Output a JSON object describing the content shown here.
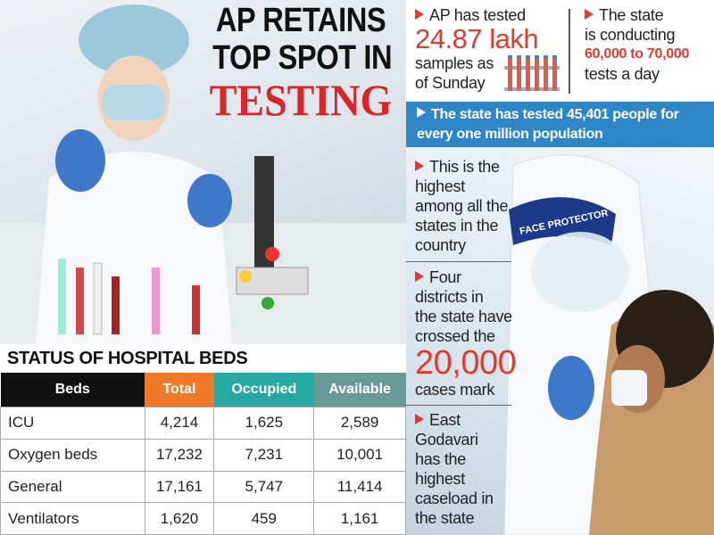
{
  "headline": {
    "lines": [
      "AP RETAINS",
      "TOP SPOT IN",
      "TESTING"
    ]
  },
  "facts": {
    "tested": {
      "lines": [
        "AP has tested",
        "24.87 lakh",
        "samples as",
        "of Sunday"
      ]
    },
    "daily": {
      "lines": [
        "The state",
        "is conducting",
        "60,000 to 70,000",
        "tests a day"
      ]
    },
    "banner": {
      "lines": [
        "The state has tested 45,401 people for",
        "every one million population"
      ]
    }
  },
  "bullets": [
    {
      "lines": [
        "This is the",
        "highest",
        "among all the",
        "states in the",
        "country"
      ]
    },
    {
      "lines": [
        "Four",
        "districts in",
        "the state have",
        "crossed the",
        "20,000",
        "cases mark"
      ]
    },
    {
      "lines": [
        "East",
        "Godavari",
        "has the",
        "highest",
        "caseload in",
        "the state"
      ]
    }
  ],
  "photo_label": "FACE PROTECTOR",
  "table": {
    "title": "STATUS OF HOSPITAL BEDS",
    "columns": [
      "Beds",
      "Total",
      "Occupied",
      "Available"
    ],
    "rows": [
      [
        "ICU",
        "4,214",
        "1,625",
        "2,589"
      ],
      [
        "Oxygen beds",
        "17,232",
        "7,231",
        "10,001"
      ],
      [
        "General",
        "17,161",
        "5,747",
        "11,414"
      ],
      [
        "Ventilators",
        "1,620",
        "459",
        "1,161"
      ]
    ]
  }
}
